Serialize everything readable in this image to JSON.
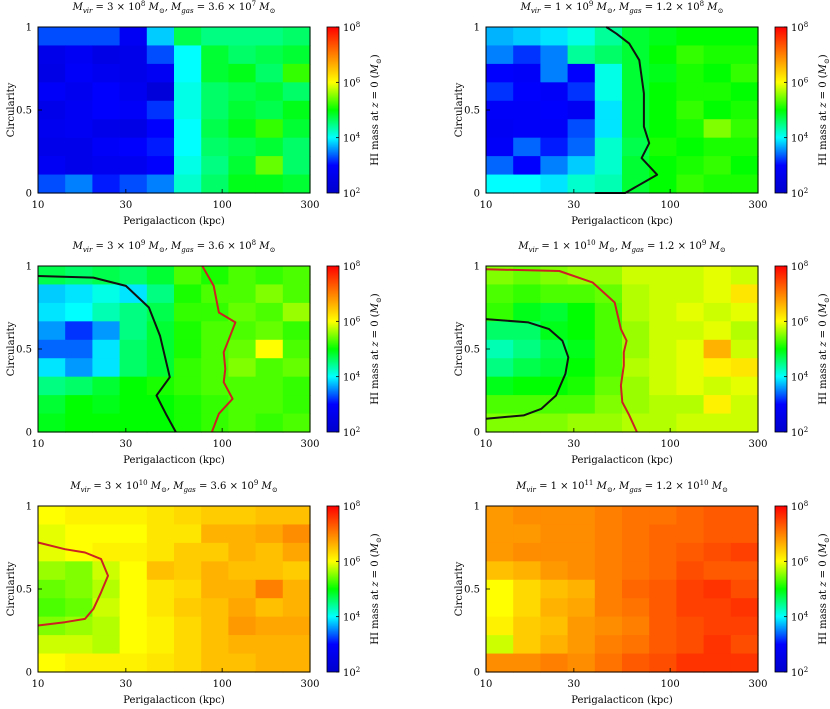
{
  "colorbar": {
    "stops": [
      "#0000cc",
      "#0000ff",
      "#00ffff",
      "#00ff00",
      "#ffff00",
      "#ff8000",
      "#ff0000"
    ],
    "label": "HI mass at z = 0 (M⊙)",
    "ticks": [
      {
        "base": "10",
        "exp": "2",
        "value": 2
      },
      {
        "base": "10",
        "exp": "4",
        "value": 4
      },
      {
        "base": "10",
        "exp": "6",
        "value": 6
      },
      {
        "base": "10",
        "exp": "8",
        "value": 8
      }
    ],
    "range": [
      2,
      8
    ]
  },
  "chart_data": [
    {
      "type": "heatmap",
      "title": "M_vir = 3 × 10^8 M⊙, M_gas = 3.6 × 10^7 M⊙",
      "xlabel": "Perigalacticon (kpc)",
      "ylabel": "Circularity",
      "x_ticks": [
        "10",
        "30",
        "100",
        "300"
      ],
      "y_ticks": [
        "0",
        "0.5",
        "1"
      ],
      "x_scale": "log",
      "xlim": [
        10,
        300
      ],
      "ylim": [
        0,
        1
      ],
      "grid": {
        "ncols": 10,
        "nrows": 9
      },
      "values_log10": [
        [
          3.3,
          3.3,
          3.3,
          2.8,
          3.8,
          4.7,
          4.5,
          4.5,
          4.5,
          4.6
        ],
        [
          2.6,
          2.8,
          2.5,
          2.6,
          3.3,
          4.0,
          4.8,
          4.6,
          4.7,
          4.8
        ],
        [
          2.5,
          2.9,
          2.7,
          2.6,
          2.8,
          4.0,
          4.8,
          4.9,
          4.6,
          5.2
        ],
        [
          2.9,
          2.7,
          3.0,
          2.7,
          2.3,
          4.1,
          4.6,
          4.7,
          4.8,
          4.6
        ],
        [
          2.6,
          2.8,
          3.0,
          2.9,
          3.2,
          4.1,
          4.6,
          4.8,
          4.7,
          4.9
        ],
        [
          2.7,
          2.8,
          2.6,
          2.5,
          3.0,
          4.0,
          4.7,
          4.9,
          5.2,
          4.8
        ],
        [
          2.6,
          2.6,
          2.9,
          3.0,
          3.1,
          4.0,
          4.6,
          4.7,
          4.8,
          4.6
        ],
        [
          2.8,
          2.6,
          2.7,
          2.7,
          3.0,
          4.1,
          4.5,
          4.8,
          5.4,
          4.6
        ],
        [
          3.3,
          3.5,
          3.1,
          3.3,
          3.5,
          4.2,
          4.6,
          4.9,
          4.9,
          4.8
        ]
      ],
      "contours": []
    },
    {
      "type": "heatmap",
      "title": "M_vir = 1 × 10^9 M⊙, M_gas = 1.2 × 10^8 M⊙",
      "xlabel": "Perigalacticon (kpc)",
      "ylabel": "Circularity",
      "x_ticks": [
        "10",
        "30",
        "100",
        "300"
      ],
      "y_ticks": [
        "0",
        "0.5",
        "1"
      ],
      "x_scale": "log",
      "xlim": [
        10,
        300
      ],
      "ylim": [
        0,
        1
      ],
      "grid": {
        "ncols": 10,
        "nrows": 9
      },
      "values_log10": [
        [
          3.7,
          3.8,
          3.9,
          4.1,
          4.4,
          4.8,
          4.9,
          5.0,
          5.0,
          5.0
        ],
        [
          3.5,
          3.2,
          3.5,
          4.4,
          4.6,
          4.8,
          5.0,
          5.2,
          5.1,
          5.1
        ],
        [
          3.0,
          2.9,
          3.5,
          3.0,
          4.1,
          4.8,
          4.9,
          5.1,
          5.0,
          5.2
        ],
        [
          3.2,
          3.0,
          2.9,
          3.2,
          4.1,
          4.8,
          5.0,
          5.1,
          5.1,
          5.0
        ],
        [
          2.9,
          2.9,
          3.0,
          2.8,
          3.9,
          4.8,
          5.0,
          5.2,
          5.0,
          5.1
        ],
        [
          2.8,
          2.9,
          2.9,
          3.3,
          3.9,
          4.8,
          5.0,
          5.1,
          5.5,
          5.2
        ],
        [
          2.9,
          3.4,
          3.1,
          3.4,
          4.2,
          4.7,
          5.1,
          5.0,
          5.1,
          5.1
        ],
        [
          3.4,
          3.0,
          3.5,
          3.8,
          4.2,
          4.8,
          5.0,
          5.1,
          5.2,
          5.0
        ],
        [
          4.0,
          4.0,
          3.9,
          4.2,
          4.3,
          4.8,
          5.0,
          5.2,
          5.1,
          5.1
        ]
      ],
      "contours": [
        {
          "color": "#111111",
          "points": [
            [
              39,
              0
            ],
            [
              57,
              0.0
            ],
            [
              85,
              0.11
            ],
            [
              70,
              0.21
            ],
            [
              77,
              0.3
            ],
            [
              72,
              0.4
            ],
            [
              72,
              0.6
            ],
            [
              70,
              0.7
            ],
            [
              68,
              0.8
            ],
            [
              60,
              0.9
            ],
            [
              51,
              0.96
            ],
            [
              45,
              1.0
            ]
          ]
        }
      ]
    },
    {
      "type": "heatmap",
      "title": "M_vir = 3 × 10^9 M⊙, M_gas = 3.6 × 10^8 M⊙",
      "xlabel": "Perigalacticon (kpc)",
      "ylabel": "Circularity",
      "x_ticks": [
        "10",
        "30",
        "100",
        "300"
      ],
      "y_ticks": [
        "0",
        "0.5",
        "1"
      ],
      "x_scale": "log",
      "xlim": [
        10,
        300
      ],
      "ylim": [
        0,
        1
      ],
      "grid": {
        "ncols": 10,
        "nrows": 9
      },
      "values_log10": [
        [
          4.7,
          4.6,
          4.7,
          4.6,
          4.8,
          5.3,
          5.1,
          5.3,
          5.2,
          5.3
        ],
        [
          3.8,
          3.9,
          4.1,
          3.9,
          4.5,
          5.1,
          5.3,
          5.3,
          5.5,
          5.3
        ],
        [
          3.9,
          4.0,
          4.3,
          4.5,
          4.7,
          5.2,
          5.2,
          5.4,
          5.3,
          5.6
        ],
        [
          3.6,
          3.2,
          3.6,
          4.5,
          4.8,
          5.1,
          5.3,
          5.3,
          5.4,
          5.2
        ],
        [
          3.4,
          3.4,
          3.9,
          4.6,
          4.8,
          5.1,
          5.3,
          5.4,
          6.0,
          5.3
        ],
        [
          3.9,
          3.6,
          3.9,
          4.6,
          4.8,
          5.2,
          5.3,
          5.5,
          5.3,
          5.4
        ],
        [
          4.5,
          4.6,
          4.8,
          5.0,
          5.1,
          5.2,
          5.3,
          5.3,
          5.3,
          5.2
        ],
        [
          4.8,
          5.0,
          4.9,
          5.0,
          5.0,
          5.1,
          5.2,
          5.3,
          5.3,
          5.2
        ],
        [
          4.9,
          5.0,
          5.0,
          5.0,
          5.0,
          5.1,
          5.2,
          5.3,
          5.2,
          5.3
        ]
      ],
      "contours": [
        {
          "color": "#111111",
          "points": [
            [
              10,
              0.94
            ],
            [
              20,
              0.93
            ],
            [
              30,
              0.88
            ],
            [
              40,
              0.75
            ],
            [
              46,
              0.58
            ],
            [
              49,
              0.45
            ],
            [
              52,
              0.33
            ],
            [
              44,
              0.22
            ],
            [
              50,
              0.1
            ],
            [
              56,
              0.0
            ]
          ]
        },
        {
          "color": "#cc2222",
          "points": [
            [
              78,
              1.0
            ],
            [
              90,
              0.88
            ],
            [
              96,
              0.72
            ],
            [
              118,
              0.66
            ],
            [
              108,
              0.55
            ],
            [
              102,
              0.48
            ],
            [
              104,
              0.38
            ],
            [
              102,
              0.3
            ],
            [
              114,
              0.2
            ],
            [
              96,
              0.11
            ],
            [
              88,
              0.0
            ]
          ]
        }
      ]
    },
    {
      "type": "heatmap",
      "title": "M_vir = 1 × 10^10 M⊙, M_gas = 1.2 × 10^9 M⊙",
      "xlabel": "Perigalacticon (kpc)",
      "ylabel": "Circularity",
      "x_ticks": [
        "10",
        "30",
        "100",
        "300"
      ],
      "y_ticks": [
        "0",
        "0.5",
        "1"
      ],
      "x_scale": "log",
      "xlim": [
        10,
        300
      ],
      "ylim": [
        0,
        1
      ],
      "grid": {
        "ncols": 10,
        "nrows": 9
      },
      "values_log10": [
        [
          5.5,
          5.4,
          5.5,
          5.6,
          5.6,
          5.8,
          5.8,
          5.8,
          5.9,
          5.8
        ],
        [
          5.3,
          5.2,
          5.3,
          5.3,
          5.4,
          5.7,
          5.8,
          5.8,
          5.9,
          6.2
        ],
        [
          5.2,
          4.9,
          4.8,
          5.0,
          5.3,
          5.7,
          5.8,
          5.9,
          5.8,
          5.9
        ],
        [
          4.6,
          4.6,
          4.9,
          5.0,
          5.3,
          5.6,
          5.8,
          5.8,
          5.9,
          5.7
        ],
        [
          4.3,
          4.5,
          4.7,
          4.9,
          5.3,
          5.6,
          5.8,
          5.9,
          6.6,
          5.8
        ],
        [
          4.5,
          4.7,
          4.8,
          5.0,
          5.3,
          5.7,
          5.8,
          5.9,
          6.1,
          6.2
        ],
        [
          4.9,
          5.0,
          5.0,
          5.1,
          5.4,
          5.6,
          5.8,
          5.9,
          5.8,
          5.9
        ],
        [
          5.3,
          5.3,
          5.3,
          5.3,
          5.5,
          5.6,
          5.7,
          5.7,
          6.1,
          5.8
        ],
        [
          5.5,
          5.5,
          5.5,
          5.6,
          5.6,
          5.7,
          5.7,
          5.8,
          5.8,
          5.8
        ]
      ],
      "contours": [
        {
          "color": "#111111",
          "points": [
            [
              10,
              0.08
            ],
            [
              16,
              0.1
            ],
            [
              20,
              0.14
            ],
            [
              24,
              0.22
            ],
            [
              27,
              0.35
            ],
            [
              28,
              0.45
            ],
            [
              26,
              0.55
            ],
            [
              22,
              0.62
            ],
            [
              17,
              0.66
            ],
            [
              10,
              0.68
            ]
          ]
        },
        {
          "color": "#cc2222",
          "points": [
            [
              10,
              0.98
            ],
            [
              25,
              0.97
            ],
            [
              38,
              0.9
            ],
            [
              50,
              0.78
            ],
            [
              54,
              0.62
            ],
            [
              58,
              0.55
            ],
            [
              56,
              0.48
            ],
            [
              56,
              0.4
            ],
            [
              54,
              0.28
            ],
            [
              55,
              0.18
            ],
            [
              60,
              0.1
            ],
            [
              66,
              0.0
            ]
          ]
        }
      ]
    },
    {
      "type": "heatmap",
      "title": "M_vir = 3 × 10^10 M⊙, M_gas = 3.6 × 10^9 M⊙",
      "xlabel": "Perigalacticon (kpc)",
      "ylabel": "Circularity",
      "x_ticks": [
        "10",
        "30",
        "100",
        "300"
      ],
      "y_ticks": [
        "0",
        "0.5",
        "1"
      ],
      "x_scale": "log",
      "xlim": [
        10,
        300
      ],
      "ylim": [
        0,
        1
      ],
      "grid": {
        "ncols": 10,
        "nrows": 9
      },
      "values_log10": [
        [
          6.0,
          6.1,
          6.1,
          6.1,
          6.2,
          6.3,
          6.4,
          6.4,
          6.5,
          6.5
        ],
        [
          5.9,
          6.0,
          6.0,
          6.0,
          6.2,
          6.2,
          6.6,
          6.6,
          6.7,
          6.9
        ],
        [
          5.9,
          6.0,
          6.1,
          6.1,
          6.2,
          6.4,
          6.4,
          6.6,
          6.5,
          6.7
        ],
        [
          5.6,
          5.5,
          5.8,
          6.0,
          6.5,
          6.4,
          6.6,
          6.5,
          6.5,
          6.4
        ],
        [
          5.4,
          5.5,
          5.7,
          6.0,
          6.2,
          6.3,
          6.6,
          6.6,
          7.0,
          6.6
        ],
        [
          5.3,
          5.4,
          5.8,
          6.0,
          6.2,
          6.4,
          6.5,
          6.7,
          6.5,
          6.6
        ],
        [
          5.5,
          5.6,
          5.7,
          6.0,
          6.1,
          6.3,
          6.5,
          6.8,
          6.7,
          6.7
        ],
        [
          5.8,
          5.8,
          5.7,
          6.0,
          6.1,
          6.3,
          6.5,
          6.6,
          6.6,
          6.6
        ],
        [
          6.0,
          6.1,
          6.1,
          6.1,
          6.2,
          6.3,
          6.5,
          6.5,
          6.6,
          6.6
        ]
      ],
      "contours": [
        {
          "color": "#cc2222",
          "points": [
            [
              10,
              0.28
            ],
            [
              14,
              0.3
            ],
            [
              18,
              0.32
            ],
            [
              20,
              0.38
            ],
            [
              22,
              0.48
            ],
            [
              24,
              0.58
            ],
            [
              22,
              0.68
            ],
            [
              18,
              0.72
            ],
            [
              14,
              0.74
            ],
            [
              10,
              0.78
            ]
          ]
        }
      ]
    },
    {
      "type": "heatmap",
      "title": "M_vir = 1 × 10^11 M⊙, M_gas = 1.2 × 10^10 M⊙",
      "xlabel": "Perigalacticon (kpc)",
      "ylabel": "Circularity",
      "x_ticks": [
        "10",
        "30",
        "100",
        "300"
      ],
      "y_ticks": [
        "0",
        "0.5",
        "1"
      ],
      "x_scale": "log",
      "xlim": [
        10,
        300
      ],
      "ylim": [
        0,
        1
      ],
      "grid": {
        "ncols": 10,
        "nrows": 9
      },
      "values_log10": [
        [
          6.8,
          6.9,
          6.9,
          6.9,
          7.0,
          7.1,
          7.1,
          7.2,
          7.3,
          7.3
        ],
        [
          6.8,
          6.8,
          6.9,
          6.9,
          7.0,
          7.1,
          7.2,
          7.2,
          7.3,
          7.3
        ],
        [
          6.8,
          6.9,
          6.9,
          6.9,
          7.0,
          7.1,
          7.2,
          7.3,
          7.4,
          7.5
        ],
        [
          6.5,
          6.6,
          6.8,
          6.9,
          7.0,
          7.1,
          7.2,
          7.4,
          7.3,
          7.3
        ],
        [
          6.0,
          6.3,
          6.5,
          6.6,
          7.0,
          7.2,
          7.3,
          7.5,
          7.6,
          7.4
        ],
        [
          6.0,
          6.3,
          6.6,
          6.7,
          7.0,
          7.1,
          7.3,
          7.5,
          7.5,
          7.6
        ],
        [
          6.1,
          6.4,
          6.5,
          6.8,
          6.9,
          7.0,
          7.3,
          7.4,
          7.5,
          7.5
        ],
        [
          5.8,
          6.4,
          6.6,
          6.8,
          7.0,
          7.1,
          7.3,
          7.4,
          7.6,
          7.4
        ],
        [
          6.9,
          6.9,
          7.0,
          6.9,
          7.1,
          7.3,
          7.4,
          7.6,
          7.6,
          7.6
        ]
      ],
      "contours": []
    }
  ]
}
